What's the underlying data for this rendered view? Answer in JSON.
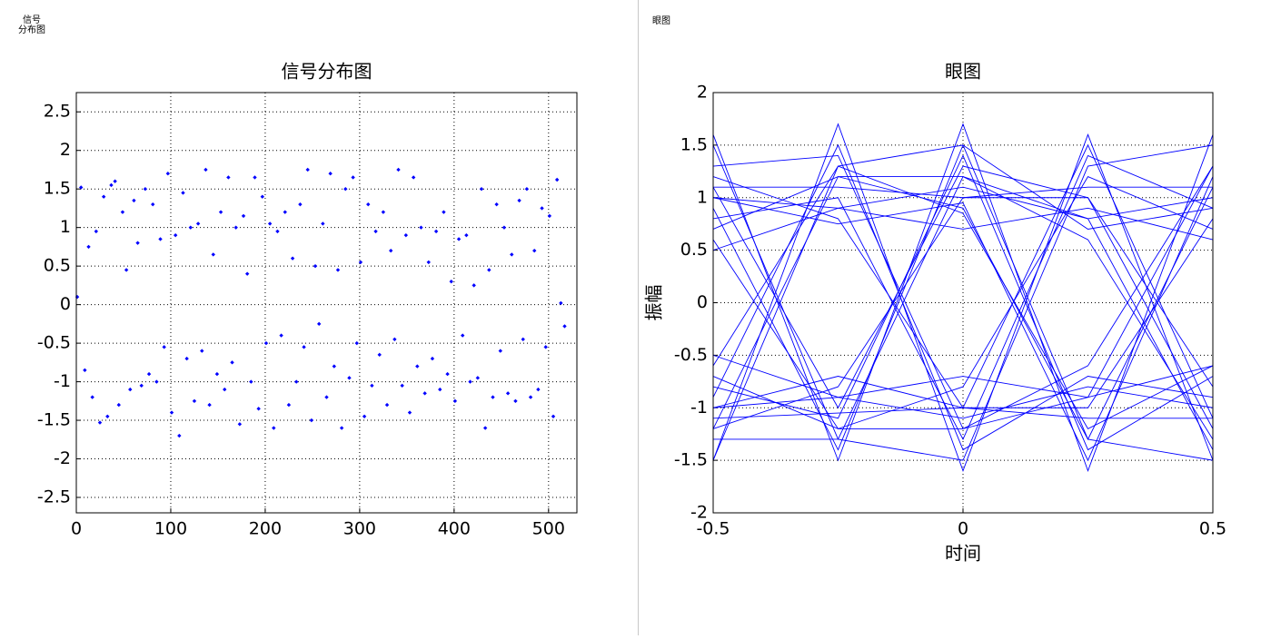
{
  "chart_data": [
    {
      "type": "scatter",
      "figure_name": [
        "信号",
        "分布图"
      ],
      "title": "信号分布图",
      "x": [
        1,
        5,
        9,
        13,
        17,
        21,
        25,
        29,
        33,
        37,
        41,
        45,
        49,
        53,
        57,
        61,
        65,
        69,
        73,
        77,
        81,
        85,
        89,
        93,
        97,
        101,
        105,
        109,
        113,
        117,
        121,
        125,
        129,
        133,
        137,
        141,
        145,
        149,
        153,
        157,
        161,
        165,
        169,
        173,
        177,
        181,
        185,
        189,
        193,
        197,
        201,
        205,
        209,
        213,
        217,
        221,
        225,
        229,
        233,
        237,
        241,
        245,
        249,
        253,
        257,
        261,
        265,
        269,
        273,
        277,
        281,
        285,
        289,
        293,
        297,
        301,
        305,
        309,
        313,
        317,
        321,
        325,
        329,
        333,
        337,
        341,
        345,
        349,
        353,
        357,
        361,
        365,
        369,
        373,
        377,
        381,
        385,
        389,
        393,
        397,
        401,
        405,
        409,
        413,
        417,
        421,
        425,
        429,
        433,
        437,
        441,
        445,
        449,
        453,
        457,
        461,
        465,
        469,
        473,
        477,
        481,
        485,
        489,
        493,
        497,
        501,
        505,
        509,
        513,
        517
      ],
      "series": [
        {
          "color": "#0000ff",
          "values": [
            0.1,
            1.52,
            -0.85,
            0.75,
            -1.2,
            0.95,
            -1.53,
            1.4,
            -1.45,
            1.55,
            1.6,
            -1.3,
            1.2,
            0.45,
            -1.1,
            1.35,
            0.8,
            -1.05,
            1.5,
            -0.9,
            1.3,
            -1.0,
            0.85,
            -0.55,
            1.7,
            -1.4,
            0.9,
            -1.7,
            1.45,
            -0.7,
            1.0,
            -1.25,
            1.05,
            -0.6,
            1.75,
            -1.3,
            0.65,
            -0.9,
            1.2,
            -1.1,
            1.65,
            -0.75,
            1.0,
            -1.55,
            1.15,
            0.4,
            -1.0,
            1.65,
            -1.35,
            1.4,
            -0.5,
            1.05,
            -1.6,
            0.95,
            -0.4,
            1.2,
            -1.3,
            0.6,
            -1.0,
            1.3,
            -0.55,
            1.75,
            -1.5,
            0.5,
            -0.25,
            1.05,
            -1.2,
            1.7,
            -0.8,
            0.45,
            -1.6,
            1.5,
            -0.95,
            1.65,
            -0.5,
            0.55,
            -1.45,
            1.3,
            -1.05,
            0.95,
            -0.65,
            1.2,
            -1.3,
            0.7,
            -0.45,
            1.75,
            -1.05,
            0.9,
            -1.4,
            1.65,
            -0.8,
            1.0,
            -1.15,
            0.55,
            -0.7,
            0.95,
            -1.1,
            1.2,
            -0.9,
            0.3,
            -1.25,
            0.85,
            -0.4,
            0.9,
            -1.0,
            0.25,
            -0.95,
            1.5,
            -1.6,
            0.45,
            -1.2,
            1.3,
            -0.6,
            1.0,
            -1.15,
            0.65,
            -1.25,
            1.35,
            -0.45,
            1.5,
            -1.2,
            0.7,
            -1.1,
            1.25,
            -0.55,
            1.15,
            -1.45,
            1.62,
            0.02,
            -0.28
          ]
        }
      ],
      "xlim": [
        0,
        530
      ],
      "xticks": [
        0,
        100,
        200,
        300,
        400,
        500
      ],
      "ylim": [
        -2.7,
        2.75
      ],
      "yticks": [
        -2.5,
        -2,
        -1.5,
        -1,
        -0.5,
        0,
        0.5,
        1,
        1.5,
        2,
        2.5
      ],
      "grid": true
    },
    {
      "type": "line",
      "figure_name": [
        "眼图"
      ],
      "title": "眼图",
      "x_label": "时间",
      "y_label": "振幅",
      "x": [
        -0.5,
        -0.25,
        0,
        0.25,
        0.5
      ],
      "series": [
        {
          "color": "#0000ff",
          "values": [
            1.6,
            -1.5,
            1.7,
            -1.6,
            1.6
          ]
        },
        {
          "color": "#0000ff",
          "values": [
            -1.5,
            1.7,
            -1.6,
            1.6,
            -1.5
          ]
        },
        {
          "color": "#0000ff",
          "values": [
            1.0,
            0.9,
            1.1,
            0.8,
            1.0
          ]
        },
        {
          "color": "#0000ff",
          "values": [
            -1.0,
            -0.9,
            -1.1,
            -0.8,
            -1.0
          ]
        },
        {
          "color": "#0000ff",
          "values": [
            1.1,
            -1.0,
            1.3,
            1.0,
            -1.2
          ]
        },
        {
          "color": "#0000ff",
          "values": [
            -1.2,
            1.2,
            0.9,
            -1.3,
            1.1
          ]
        },
        {
          "color": "#0000ff",
          "values": [
            0.8,
            1.0,
            -1.3,
            1.4,
            0.9
          ]
        },
        {
          "color": "#0000ff",
          "values": [
            -0.8,
            -1.1,
            1.4,
            -1.4,
            -0.7
          ]
        },
        {
          "color": "#0000ff",
          "values": [
            1.3,
            1.4,
            -1.2,
            -0.9,
            1.3
          ]
        },
        {
          "color": "#0000ff",
          "values": [
            -1.3,
            -1.3,
            1.2,
            0.8,
            -1.4
          ]
        },
        {
          "color": "#0000ff",
          "values": [
            0.6,
            -1.2,
            -0.8,
            1.2,
            0.7
          ]
        },
        {
          "color": "#0000ff",
          "values": [
            -0.6,
            1.3,
            0.85,
            -1.2,
            -0.6
          ]
        },
        {
          "color": "#0000ff",
          "values": [
            1.0,
            0.75,
            0.95,
            -1.5,
            1.2
          ]
        },
        {
          "color": "#0000ff",
          "values": [
            -1.0,
            -0.7,
            -1.0,
            1.5,
            -1.1
          ]
        },
        {
          "color": "#0000ff",
          "values": [
            0.9,
            -1.4,
            1.5,
            0.7,
            0.9
          ]
        },
        {
          "color": "#0000ff",
          "values": [
            -0.9,
            1.5,
            -1.4,
            -0.7,
            -0.9
          ]
        },
        {
          "color": "#0000ff",
          "values": [
            1.2,
            0.8,
            -1.0,
            -1.0,
            0.8
          ]
        },
        {
          "color": "#0000ff",
          "values": [
            -1.2,
            -0.8,
            1.0,
            1.0,
            -0.8
          ]
        },
        {
          "color": "#0000ff",
          "values": [
            0.7,
            1.2,
            1.2,
            0.6,
            -1.3
          ]
        },
        {
          "color": "#0000ff",
          "values": [
            -0.7,
            -1.2,
            -1.2,
            -0.6,
            1.3
          ]
        },
        {
          "color": "#0000ff",
          "values": [
            1.5,
            -1.3,
            -1.5,
            1.3,
            1.5
          ]
        },
        {
          "color": "#0000ff",
          "values": [
            -1.5,
            1.3,
            1.5,
            -1.3,
            -1.5
          ]
        },
        {
          "color": "#0000ff",
          "values": [
            0.5,
            0.9,
            0.7,
            0.9,
            0.6
          ]
        },
        {
          "color": "#0000ff",
          "values": [
            -0.5,
            -0.9,
            -0.7,
            -0.9,
            -0.6
          ]
        },
        {
          "color": "#0000ff",
          "values": [
            1.1,
            1.1,
            1.0,
            1.1,
            1.1
          ]
        },
        {
          "color": "#0000ff",
          "values": [
            -1.1,
            -1.05,
            -1.0,
            -1.1,
            -1.1
          ]
        }
      ],
      "xlim": [
        -0.5,
        0.5
      ],
      "xticks": [
        -0.5,
        0,
        0.5
      ],
      "ylim": [
        -2,
        2
      ],
      "yticks": [
        -2,
        -1.5,
        -1,
        -0.5,
        0,
        0.5,
        1,
        1.5,
        2
      ],
      "grid": true
    }
  ]
}
